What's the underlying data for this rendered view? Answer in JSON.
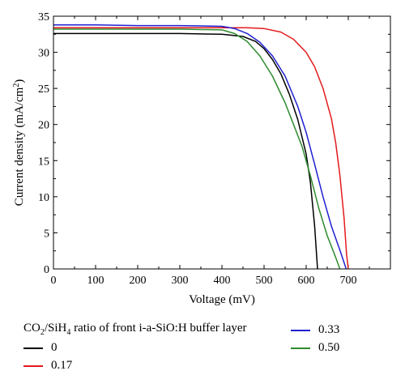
{
  "chart_data": {
    "type": "line",
    "xlabel": "Voltage (mV)",
    "ylabel_parts": [
      "Current density (mA/cm",
      "2",
      ")"
    ],
    "xlim": [
      0,
      800
    ],
    "ylim": [
      0,
      35
    ],
    "x_ticks": [
      0,
      100,
      200,
      300,
      400,
      500,
      600,
      700
    ],
    "y_ticks": [
      0,
      5,
      10,
      15,
      20,
      25,
      30,
      35
    ],
    "grid": false,
    "legend_title_parts": [
      "CO",
      "2",
      "/SiH",
      "4",
      " ratio of front i-a-SiO:H buffer layer"
    ],
    "series": [
      {
        "name": "0",
        "color": "#000000",
        "points": [
          [
            0,
            32.6
          ],
          [
            100,
            32.6
          ],
          [
            200,
            32.6
          ],
          [
            300,
            32.6
          ],
          [
            400,
            32.5
          ],
          [
            450,
            32.2
          ],
          [
            480,
            31.5
          ],
          [
            500,
            30.5
          ],
          [
            520,
            29.0
          ],
          [
            540,
            27.0
          ],
          [
            560,
            24.2
          ],
          [
            580,
            20.7
          ],
          [
            600,
            15.9
          ],
          [
            610,
            12.0
          ],
          [
            620,
            6.0
          ],
          [
            627,
            0
          ]
        ]
      },
      {
        "name": "0.17",
        "color": "#e31a1c",
        "points": [
          [
            0,
            33.4
          ],
          [
            100,
            33.4
          ],
          [
            200,
            33.4
          ],
          [
            300,
            33.4
          ],
          [
            400,
            33.4
          ],
          [
            460,
            33.4
          ],
          [
            500,
            33.3
          ],
          [
            540,
            32.8
          ],
          [
            570,
            31.8
          ],
          [
            600,
            30.0
          ],
          [
            620,
            28.0
          ],
          [
            640,
            25.0
          ],
          [
            660,
            20.8
          ],
          [
            670,
            17.5
          ],
          [
            680,
            13.0
          ],
          [
            690,
            7.0
          ],
          [
            696,
            2.0
          ],
          [
            700,
            0
          ]
        ]
      },
      {
        "name": "0.33",
        "color": "#1f1fd0",
        "points": [
          [
            0,
            33.8
          ],
          [
            100,
            33.8
          ],
          [
            200,
            33.7
          ],
          [
            300,
            33.7
          ],
          [
            400,
            33.6
          ],
          [
            430,
            33.3
          ],
          [
            460,
            32.6
          ],
          [
            490,
            31.4
          ],
          [
            520,
            29.5
          ],
          [
            550,
            26.7
          ],
          [
            580,
            22.5
          ],
          [
            600,
            18.9
          ],
          [
            620,
            14.5
          ],
          [
            640,
            10.0
          ],
          [
            660,
            5.9
          ],
          [
            680,
            2.6
          ],
          [
            695,
            0
          ]
        ]
      },
      {
        "name": "0.50",
        "color": "#2e8b2e",
        "points": [
          [
            0,
            33.2
          ],
          [
            100,
            33.2
          ],
          [
            200,
            33.2
          ],
          [
            300,
            33.2
          ],
          [
            400,
            33.1
          ],
          [
            430,
            32.6
          ],
          [
            460,
            31.5
          ],
          [
            490,
            29.5
          ],
          [
            520,
            26.7
          ],
          [
            550,
            23.0
          ],
          [
            570,
            20.0
          ],
          [
            590,
            17.0
          ],
          [
            610,
            12.9
          ],
          [
            630,
            8.4
          ],
          [
            650,
            4.6
          ],
          [
            670,
            1.6
          ],
          [
            680,
            0
          ]
        ]
      }
    ]
  }
}
